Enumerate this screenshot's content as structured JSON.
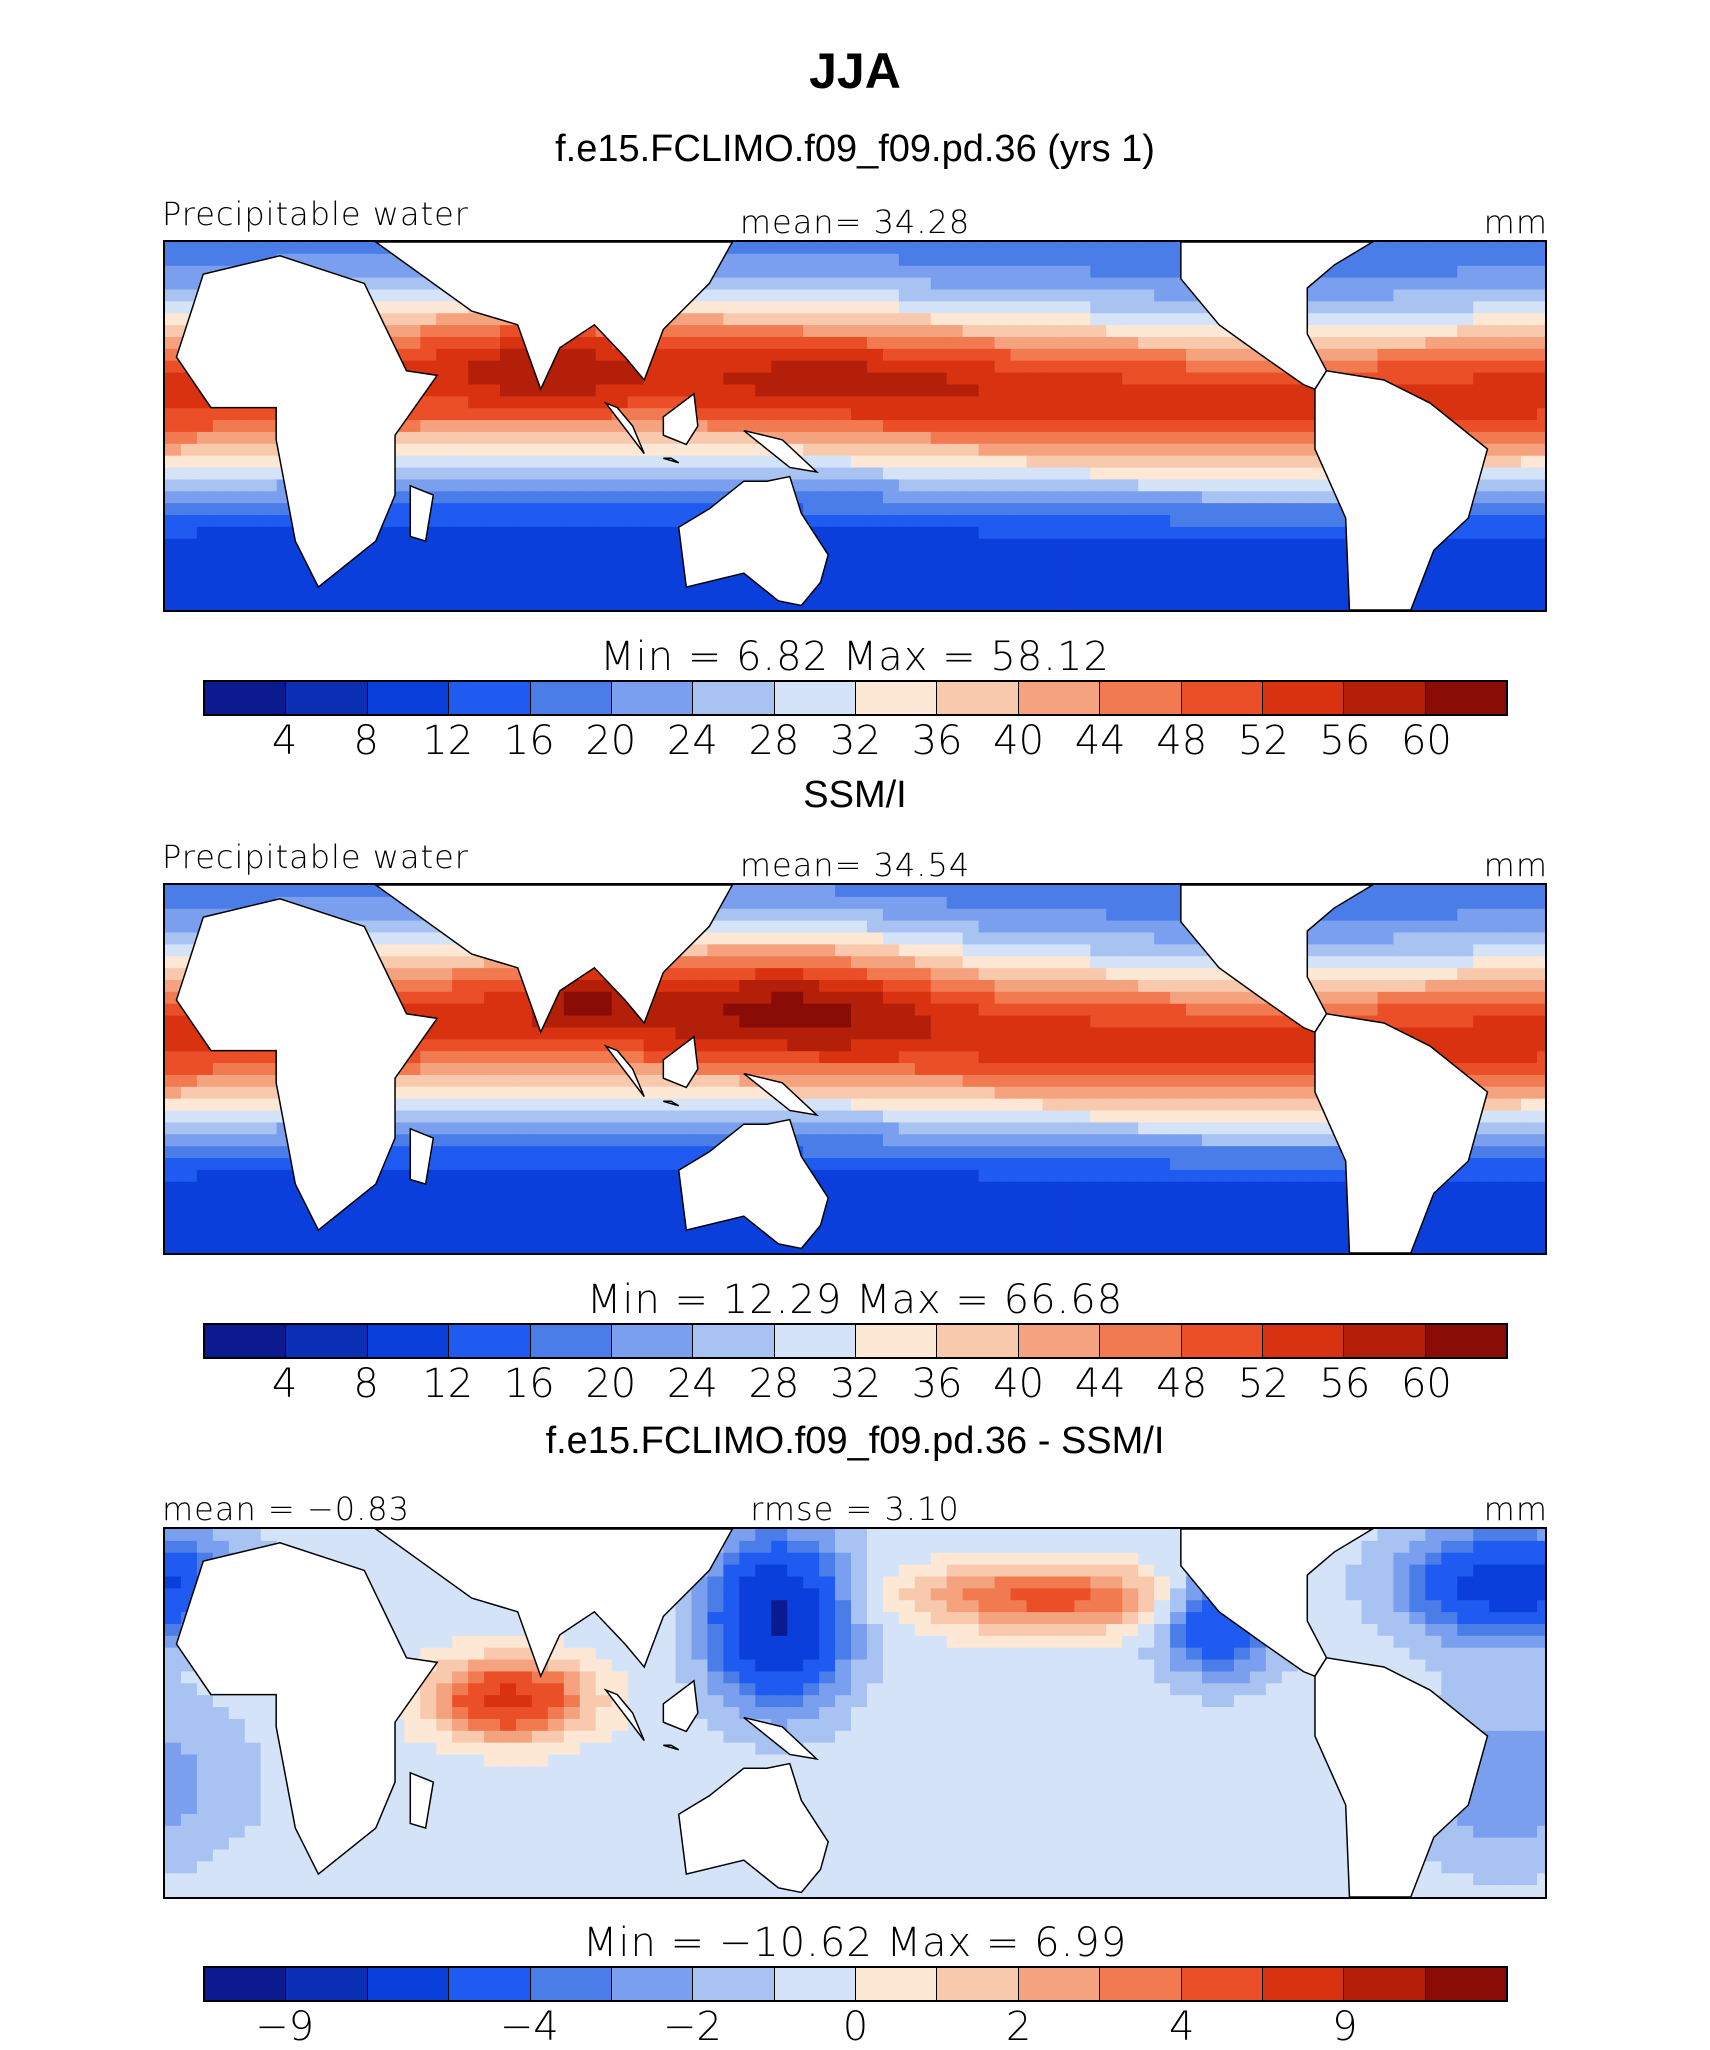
{
  "page_title": "JJA",
  "colors": {
    "palette": [
      "#0b1b8f",
      "#0a2fb5",
      "#0b3fdb",
      "#1f5bf0",
      "#4a7de8",
      "#7a9fee",
      "#a8c2f2",
      "#d4e3f8",
      "#fde8d6",
      "#f9c9ad",
      "#f5a27f",
      "#f17a51",
      "#ea4f27",
      "#d93210",
      "#b41f0a",
      "#8a0c06"
    ],
    "land": "#ffffff",
    "coast": "#000000"
  },
  "chart_data": [
    {
      "type": "heatmap",
      "panel_title": "f.e15.FCLIMO.f09_f09.pd.36 (yrs 1)",
      "left_label": "Precipitable water",
      "center_label": "mean=   34.28",
      "right_label": "mm",
      "min_max": "Min  =     6.82  Max  =    58.12",
      "units": "mm",
      "stats": {
        "mean": 34.28,
        "min": 6.82,
        "max": 58.12
      },
      "colorbar_ticks": [
        "4",
        "8",
        "12",
        "16",
        "20",
        "24",
        "28",
        "32",
        "36",
        "40",
        "44",
        "48",
        "52",
        "56",
        "60"
      ]
    },
    {
      "type": "heatmap",
      "panel_title": "SSM/I",
      "left_label": "Precipitable water",
      "center_label": "mean=   34.54",
      "right_label": "mm",
      "min_max": "Min  =   12.29  Max  =    66.68",
      "units": "mm",
      "stats": {
        "mean": 34.54,
        "min": 12.29,
        "max": 66.68
      },
      "colorbar_ticks": [
        "4",
        "8",
        "12",
        "16",
        "20",
        "24",
        "28",
        "32",
        "36",
        "40",
        "44",
        "48",
        "52",
        "56",
        "60"
      ]
    },
    {
      "type": "heatmap",
      "panel_title": "f.e15.FCLIMO.f09_f09.pd.36 - SSM/I",
      "left_label": "mean =   −0.83",
      "center_label": "rmse  =     3.10",
      "right_label": "mm",
      "min_max": "Min  =  −10.62  Max  =      6.99",
      "units": "mm",
      "stats": {
        "mean": -0.83,
        "rmse": 3.1,
        "min": -10.62,
        "max": 6.99
      },
      "colorbar_ticks": [
        "−9",
        "−4",
        "−2",
        "0",
        "2",
        "4",
        "9"
      ]
    }
  ]
}
